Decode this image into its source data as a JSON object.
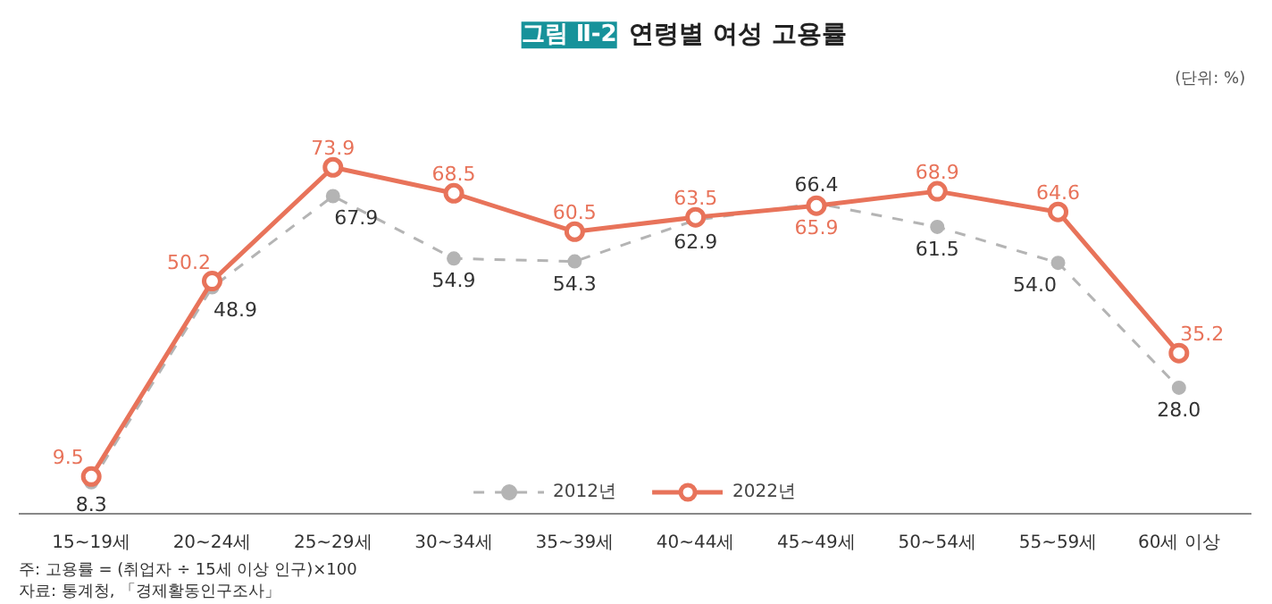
{
  "chart_data": {
    "type": "line",
    "subtitle": "그림 Ⅱ-2",
    "title": "연령별 여성 고용률",
    "annotations": [
      "(단위: %)",
      "주: 고용률 = (취업자 ÷ 15세 이상 인구)×100",
      "자료: 통계청, 「경제활동인구조사」"
    ],
    "categories": [
      "15~19세",
      "20~24세",
      "25~29세",
      "30~34세",
      "35~39세",
      "40~44세",
      "45~49세",
      "50~54세",
      "55~59세",
      "60세 이상"
    ],
    "series": [
      {
        "name": "2012년",
        "color": "#b4b4b4",
        "line_style": "dashed",
        "values": [
          8.3,
          48.9,
          67.9,
          54.9,
          54.3,
          62.9,
          66.4,
          61.5,
          54.0,
          28.0
        ],
        "value_labels": [
          "8.3",
          "48.9",
          "67.9",
          "54.9",
          "54.3",
          "62.9",
          "66.4",
          "61.5",
          "54.0",
          "28.0"
        ]
      },
      {
        "name": "2022년",
        "color": "#e8735a",
        "line_style": "solid",
        "values": [
          9.5,
          50.2,
          73.9,
          68.5,
          60.5,
          63.5,
          65.9,
          68.9,
          64.6,
          35.2
        ],
        "value_labels": [
          "9.5",
          "50.2",
          "73.9",
          "68.5",
          "60.5",
          "63.5",
          "65.9",
          "68.9",
          "64.6",
          "35.2"
        ]
      }
    ],
    "marker": "circle",
    "legend": "bottom",
    "grid": false
  }
}
